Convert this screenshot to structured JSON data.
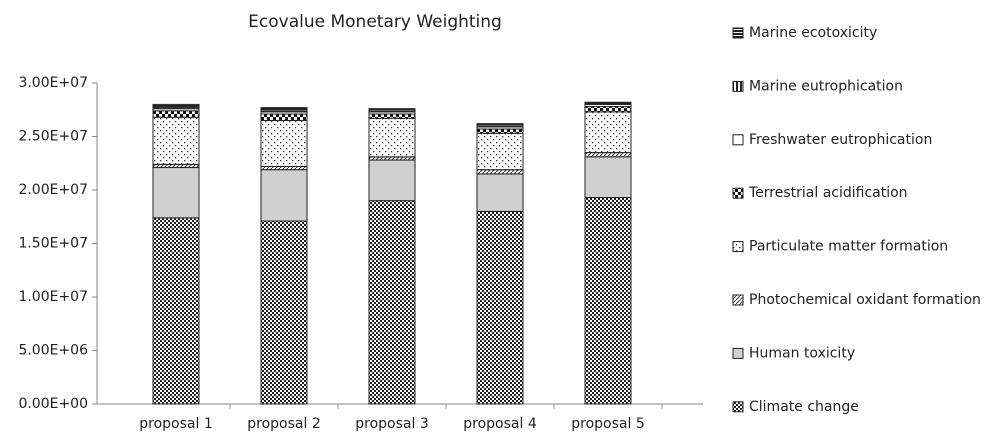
{
  "chart_data": {
    "type": "stacked_bar",
    "title": "Ecovalue Monetary Weighting",
    "categories": [
      "proposal 1",
      "proposal 2",
      "proposal 3",
      "proposal 4",
      "proposal 5"
    ],
    "series": [
      {
        "name": "Climate change",
        "values": [
          17400000,
          17100000,
          19000000,
          18000000,
          19300000
        ]
      },
      {
        "name": "Human toxicity",
        "values": [
          4700000,
          4800000,
          3800000,
          3500000,
          3800000
        ]
      },
      {
        "name": "Photochemical oxidant formation",
        "values": [
          300000,
          300000,
          300000,
          400000,
          400000
        ]
      },
      {
        "name": "Particulate matter formation",
        "values": [
          4400000,
          4300000,
          3600000,
          3400000,
          3800000
        ]
      },
      {
        "name": "Terrestrial acidification",
        "values": [
          600000,
          600000,
          400000,
          400000,
          500000
        ]
      },
      {
        "name": "Freshwater eutrophication",
        "values": [
          200000,
          200000,
          200000,
          200000,
          200000
        ]
      },
      {
        "name": "Marine eutrophication",
        "values": [
          100000,
          100000,
          100000,
          100000,
          100000
        ]
      },
      {
        "name": "Marine ecotoxicity",
        "values": [
          300000,
          300000,
          200000,
          200000,
          100000
        ]
      }
    ],
    "ylim": [
      0,
      30000000
    ],
    "yticks": [
      {
        "value": 0,
        "label": "0.00E+00"
      },
      {
        "value": 5000000,
        "label": "5.00E+06"
      },
      {
        "value": 10000000,
        "label": "1.00E+07"
      },
      {
        "value": 15000000,
        "label": "1.50E+07"
      },
      {
        "value": 20000000,
        "label": "2.00E+07"
      },
      {
        "value": 25000000,
        "label": "2.50E+07"
      },
      {
        "value": 30000000,
        "label": "3.00E+07"
      }
    ],
    "legend": "right"
  }
}
